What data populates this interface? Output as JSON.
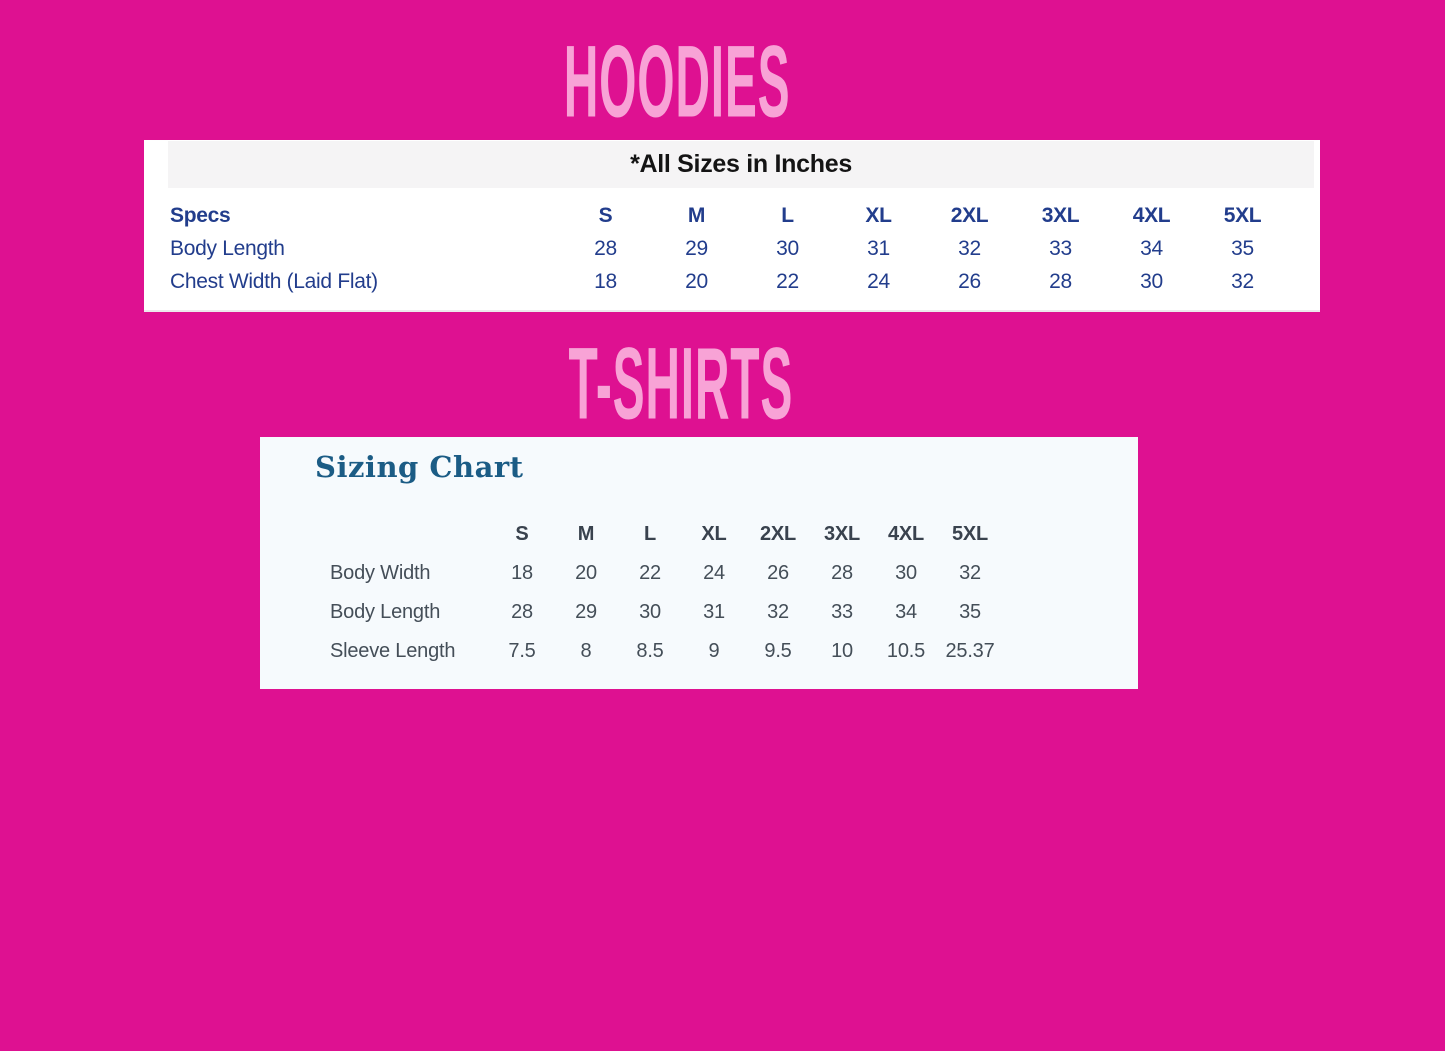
{
  "page": {
    "background_color": "#DE1191",
    "section_title_color": "#F8A3D6"
  },
  "hoodies": {
    "section_title": "HOODIES",
    "note": "*All Sizes in Inches",
    "specs_label": "Specs",
    "text_color": "#223D8C",
    "columns": [
      "S",
      "M",
      "L",
      "XL",
      "2XL",
      "3XL",
      "4XL",
      "5XL"
    ],
    "rows": [
      {
        "label": "Body Length",
        "values": [
          "28",
          "29",
          "30",
          "31",
          "32",
          "33",
          "34",
          "35"
        ]
      },
      {
        "label": "Chest Width (Laid Flat)",
        "values": [
          "18",
          "20",
          "22",
          "24",
          "26",
          "28",
          "30",
          "32"
        ]
      }
    ]
  },
  "tshirts": {
    "section_title": "T-SHIRTS",
    "card_title": "Sizing Chart",
    "card_title_color": "#1B5C85",
    "text_color": "#444E58",
    "columns": [
      "S",
      "M",
      "L",
      "XL",
      "2XL",
      "3XL",
      "4XL",
      "5XL"
    ],
    "rows": [
      {
        "label": "Body Width",
        "values": [
          "18",
          "20",
          "22",
          "24",
          "26",
          "28",
          "30",
          "32"
        ]
      },
      {
        "label": "Body Length",
        "values": [
          "28",
          "29",
          "30",
          "31",
          "32",
          "33",
          "34",
          "35"
        ]
      },
      {
        "label": "Sleeve Length",
        "values": [
          "7.5",
          "8",
          "8.5",
          "9",
          "9.5",
          "10",
          "10.5",
          "25.37"
        ]
      }
    ]
  }
}
